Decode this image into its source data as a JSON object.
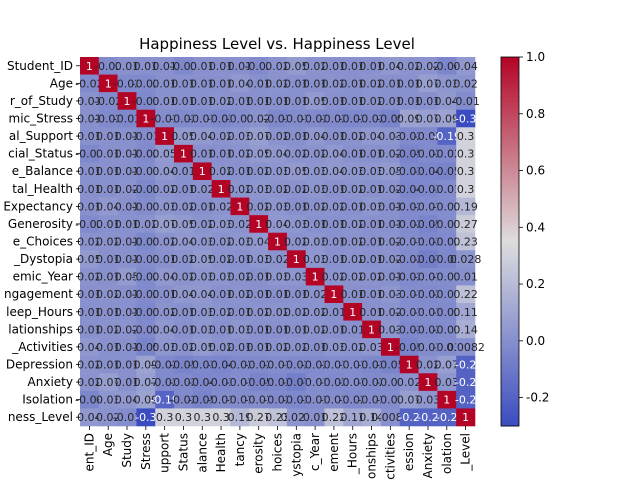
{
  "chart_data": {
    "type": "heatmap",
    "title": "Happiness Level vs. Happiness Level",
    "row_labels": [
      "Student_ID",
      "Age",
      "r_of_Study",
      "mic_Stress",
      "al_Support",
      "cial_Status",
      "e_Balance",
      "tal_Health",
      "Expectancy",
      "Generosity",
      "e_Choices",
      "_Dystopia",
      "emic_Year",
      "ngagement",
      "leep_Hours",
      "lationships",
      "_Activities",
      "Depression",
      "Anxiety",
      "Isolation",
      "ness_Level"
    ],
    "col_labels": [
      "ent_ID",
      "Age",
      "Study",
      "Stress",
      "upport",
      "Status",
      "alance",
      "Health",
      "tancy",
      "erosity",
      "hoices",
      "ystopia",
      "c_Year",
      "ement",
      "_Hours",
      "onships",
      "ctivities",
      "ession",
      "Anxiety",
      "olation",
      "_Level"
    ],
    "matrix": [
      [
        1,
        -0.02,
        0.01,
        0.01,
        0.01,
        -0.03,
        0.01,
        0.01,
        0.01,
        -0.02,
        0.02,
        0.05,
        0.02,
        0.01,
        0.01,
        0.01,
        0.04,
        0.02,
        0.02,
        -0.04,
        0.04
      ],
      [
        -0.02,
        1,
        -0.02,
        -0.02,
        0.01,
        0.01,
        0.01,
        0.01,
        0.04,
        0.01,
        0.02,
        0.01,
        0.01,
        0.02,
        0.01,
        0.02,
        0.01,
        0.01,
        0.07,
        0.03,
        0.02
      ],
      [
        0.01,
        -0.02,
        1,
        -0.03,
        0.01,
        0.01,
        0.01,
        0.02,
        0.01,
        0.01,
        0.01,
        0.01,
        0.05,
        0.01,
        0.01,
        0.02,
        0.01,
        0.01,
        0.01,
        0.04,
        -0.01
      ],
      [
        0.01,
        -0.02,
        -0.03,
        1,
        -0.01,
        -0.02,
        -0.01,
        -0.03,
        -0.01,
        0.02,
        -0.03,
        -0.01,
        -0.02,
        -0.02,
        -0.03,
        -0.02,
        -0.05,
        0.09,
        0.07,
        0.09,
        -0.3
      ],
      [
        0.01,
        0.01,
        0.01,
        -0.01,
        1,
        0.05,
        0.04,
        0.02,
        0.03,
        0.07,
        0.02,
        0.01,
        0.04,
        0.01,
        0.02,
        0.04,
        0.03,
        -0.02,
        -0.02,
        -0.19,
        0.3
      ],
      [
        -0.03,
        0.01,
        0.01,
        -0.02,
        0.05,
        1,
        0.01,
        0.01,
        0.02,
        0.05,
        0.04,
        0.02,
        0.02,
        0.04,
        0.01,
        0.01,
        0.02,
        -0.05,
        -0.02,
        -0.02,
        0.3
      ],
      [
        0.01,
        0.01,
        0.01,
        -0.01,
        0.04,
        0.01,
        1,
        0.02,
        0.01,
        0.02,
        0.03,
        0.05,
        0.03,
        0.04,
        0.03,
        0.03,
        0.05,
        -0.03,
        -0.04,
        -0.05,
        0.3
      ],
      [
        0.01,
        0.01,
        0.02,
        -0.03,
        0.02,
        0.01,
        0.02,
        1,
        0.02,
        0.03,
        0.02,
        0.02,
        0.03,
        0.01,
        0.02,
        0.01,
        0.02,
        -0.04,
        -0.03,
        -0.01,
        0.3
      ],
      [
        0.01,
        0.04,
        0.01,
        -0.01,
        0.03,
        0.02,
        0.01,
        0.02,
        1,
        0.02,
        0.03,
        0.01,
        0.02,
        0.02,
        0.01,
        0.03,
        0.01,
        -0.02,
        -0.01,
        -0.01,
        0.19
      ],
      [
        -0.02,
        0.01,
        0.01,
        0.02,
        0.07,
        0.05,
        0.02,
        0.03,
        0.02,
        1,
        0.04,
        0.03,
        0.01,
        0.01,
        0.02,
        0.01,
        0.01,
        -0.02,
        -0.05,
        -0.01,
        0.27
      ],
      [
        0.02,
        0.02,
        0.01,
        -0.03,
        0.02,
        0.04,
        0.03,
        0.02,
        0.03,
        0.04,
        1,
        0.02,
        0.03,
        0.01,
        0.02,
        0.01,
        0.02,
        -0.01,
        -0.03,
        -0.02,
        0.23
      ],
      [
        0.05,
        0.01,
        0.01,
        -0.01,
        0.01,
        0.02,
        0.05,
        0.02,
        0.01,
        0.03,
        0.02,
        1,
        0.03,
        0.01,
        0.02,
        0.01,
        0.02,
        -0.02,
        -0.07,
        -0.03,
        0.028
      ],
      [
        0.02,
        0.01,
        0.05,
        -0.02,
        0.04,
        0.02,
        0.03,
        0.03,
        0.02,
        0.01,
        0.03,
        0.03,
        1,
        0.02,
        0.02,
        0.02,
        0.01,
        -0.02,
        -0.01,
        -0.01,
        0.01
      ],
      [
        0.01,
        0.02,
        0.01,
        -0.02,
        0.01,
        0.04,
        0.04,
        0.01,
        0.02,
        0.01,
        0.01,
        0.01,
        0.02,
        1,
        0.01,
        0.01,
        0.03,
        -0.01,
        -0.02,
        -0.01,
        0.22
      ],
      [
        0.01,
        0.01,
        0.01,
        -0.03,
        0.02,
        0.01,
        0.03,
        0.02,
        0.01,
        0.02,
        0.02,
        0.02,
        0.02,
        0.01,
        1,
        0.01,
        0.02,
        -0.01,
        -0.01,
        -0.02,
        0.11
      ],
      [
        0.01,
        0.02,
        0.02,
        -0.02,
        0.04,
        0.01,
        0.03,
        0.01,
        0.03,
        0.01,
        0.01,
        0.01,
        0.02,
        0.01,
        0.01,
        1,
        0.03,
        -0.03,
        -0.02,
        -0.01,
        0.14
      ],
      [
        0.04,
        0.01,
        0.01,
        -0.05,
        0.03,
        0.02,
        0.05,
        0.02,
        0.01,
        0.01,
        0.02,
        0.02,
        0.01,
        0.03,
        0.02,
        0.03,
        1,
        -0.05,
        -0.01,
        -0.01,
        0.0082
      ],
      [
        0.02,
        0.01,
        0.01,
        0.09,
        -0.02,
        -0.05,
        -0.03,
        -0.04,
        -0.02,
        -0.02,
        -0.01,
        -0.02,
        -0.02,
        -0.01,
        -0.01,
        -0.03,
        -0.05,
        1,
        0.02,
        0.07,
        -0.2
      ],
      [
        0.02,
        0.07,
        0.01,
        0.07,
        -0.02,
        -0.02,
        -0.04,
        -0.03,
        -0.01,
        -0.05,
        -0.03,
        -0.07,
        -0.01,
        -0.02,
        -0.01,
        -0.02,
        -0.01,
        0.02,
        1,
        0.03,
        -0.2
      ],
      [
        -0.04,
        0.03,
        0.04,
        0.09,
        -0.19,
        -0.02,
        -0.05,
        -0.01,
        -0.01,
        -0.01,
        -0.02,
        -0.03,
        -0.01,
        -0.01,
        -0.02,
        -0.01,
        -0.01,
        0.07,
        0.03,
        1,
        -0.2
      ],
      [
        0.04,
        0.02,
        -0.01,
        -0.3,
        0.3,
        0.3,
        0.3,
        0.3,
        0.19,
        0.27,
        0.23,
        0.028,
        0.01,
        0.22,
        0.11,
        0.14,
        0.0082,
        -0.2,
        -0.2,
        -0.2,
        1
      ]
    ],
    "vmin": -0.3,
    "vmax": 1.0,
    "colorbar_ticks": [
      -0.2,
      0.0,
      0.2,
      0.4,
      0.6,
      0.8,
      1.0
    ],
    "colormap": "coolwarm",
    "colors": {
      "low": "#3b4cc0",
      "mid": "#dddddd",
      "high": "#b40426"
    }
  }
}
